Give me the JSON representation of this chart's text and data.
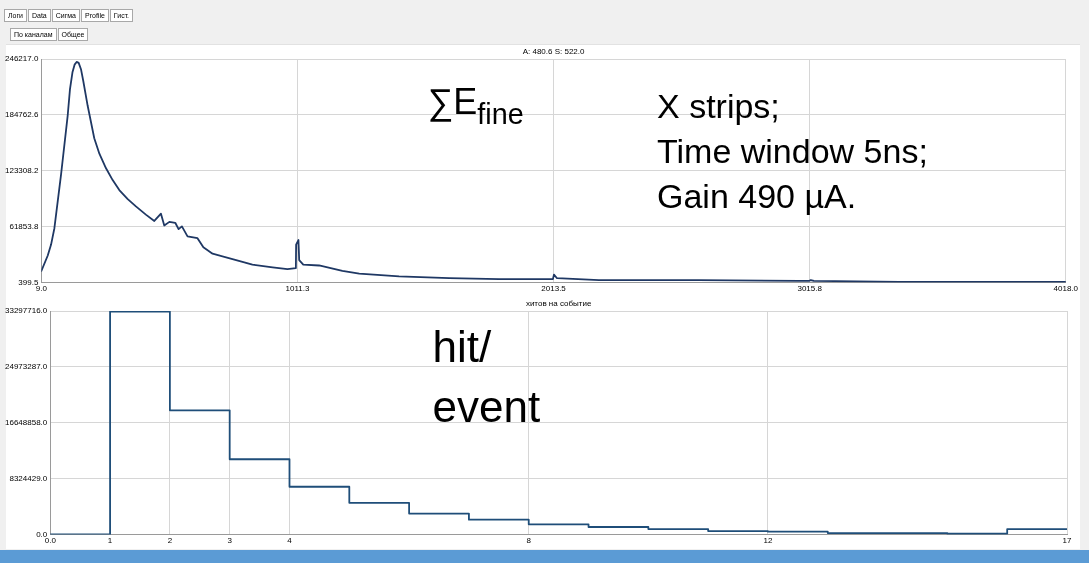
{
  "chart_data": [
    {
      "type": "other",
      "annotations": [
        "Логи",
        "Data",
        "Сигма",
        "Profile",
        "Гист."
      ]
    },
    {
      "type": "other",
      "annotations": [
        "По каналам",
        "Общее"
      ]
    },
    {
      "type": "line",
      "title": "A: 480.6 S: 522.0",
      "annotations": [
        "∑E$_{fine}$",
        "X strips;",
        "Time window 5ns;",
        "Gain 490 µA."
      ],
      "x": [
        9,
        34,
        47,
        60,
        86,
        112,
        121,
        131,
        139,
        147,
        155,
        164,
        173,
        190,
        216,
        236,
        262,
        288,
        314,
        347,
        379,
        418,
        451,
        477,
        490,
        510,
        533,
        546,
        559,
        581,
        620,
        643,
        679,
        757,
        835,
        914,
        972,
        1005,
        1006,
        1015,
        1018,
        1034,
        1096,
        1187,
        1253,
        1409,
        1605,
        1800,
        1996,
        2011,
        2015,
        2027,
        2191,
        2582,
        2973,
        3013,
        3020,
        3032,
        3365,
        3756,
        4018
      ],
      "values": [
        13000,
        30000,
        42000,
        60000,
        119000,
        184000,
        213000,
        232000,
        240000,
        243000,
        242000,
        235000,
        222000,
        195000,
        159000,
        142000,
        126000,
        113000,
        102000,
        92000,
        84000,
        75000,
        68000,
        76000,
        63000,
        67000,
        66000,
        59000,
        62000,
        51000,
        49000,
        39000,
        32000,
        26000,
        20000,
        17000,
        15000,
        16000,
        42000,
        47000,
        25000,
        20000,
        19000,
        13000,
        10000,
        7000,
        5000,
        4000,
        4000,
        4000,
        9000,
        5000,
        3000,
        3000,
        2000,
        2000,
        3000,
        2000,
        1000,
        1000,
        1000
      ],
      "color": "#1f3864",
      "xlim": [
        9,
        4018
      ],
      "xticks": [
        {
          "value": 9,
          "label": "9.0"
        },
        1011.3,
        2013.5,
        3015.8,
        {
          "value": 4018,
          "label": "4018.0"
        }
      ],
      "ylim": [
        399.5,
        246217
      ],
      "yticks": [
        399.5,
        61853.8,
        123308.2,
        184762.6,
        {
          "value": 246217,
          "label": "246217.0"
        }
      ],
      "grid": true,
      "marker": "none"
    },
    {
      "type": "step",
      "title": "хитов на событие",
      "annotations": [
        "hit/",
        "event"
      ],
      "x": [
        0,
        1,
        2,
        3,
        4,
        5,
        6,
        7,
        8,
        9,
        10,
        11,
        12,
        13,
        14,
        15,
        16,
        17
      ],
      "values": [
        0,
        33200000,
        18500000,
        11200000,
        7100000,
        4700000,
        3100000,
        2200000,
        1500000,
        1100000,
        800000,
        500000,
        400000,
        200000,
        200000,
        100000,
        800000,
        800000
      ],
      "color": "#1f4e79",
      "xlim": [
        0,
        17
      ],
      "xticks": [
        {
          "value": 0,
          "label": "0.0"
        },
        1,
        2,
        3,
        4,
        8,
        12,
        17
      ],
      "ylim": [
        0,
        33297716
      ],
      "yticks": [
        {
          "value": 0,
          "label": "0.0"
        },
        {
          "value": 8324429,
          "label": "8324429.0"
        },
        {
          "value": 16648858,
          "label": "16648858.0"
        },
        {
          "value": 24973287,
          "label": "24973287.0"
        },
        {
          "value": 33297716,
          "label": "33297716.0"
        }
      ],
      "grid": true,
      "marker": "none"
    }
  ]
}
